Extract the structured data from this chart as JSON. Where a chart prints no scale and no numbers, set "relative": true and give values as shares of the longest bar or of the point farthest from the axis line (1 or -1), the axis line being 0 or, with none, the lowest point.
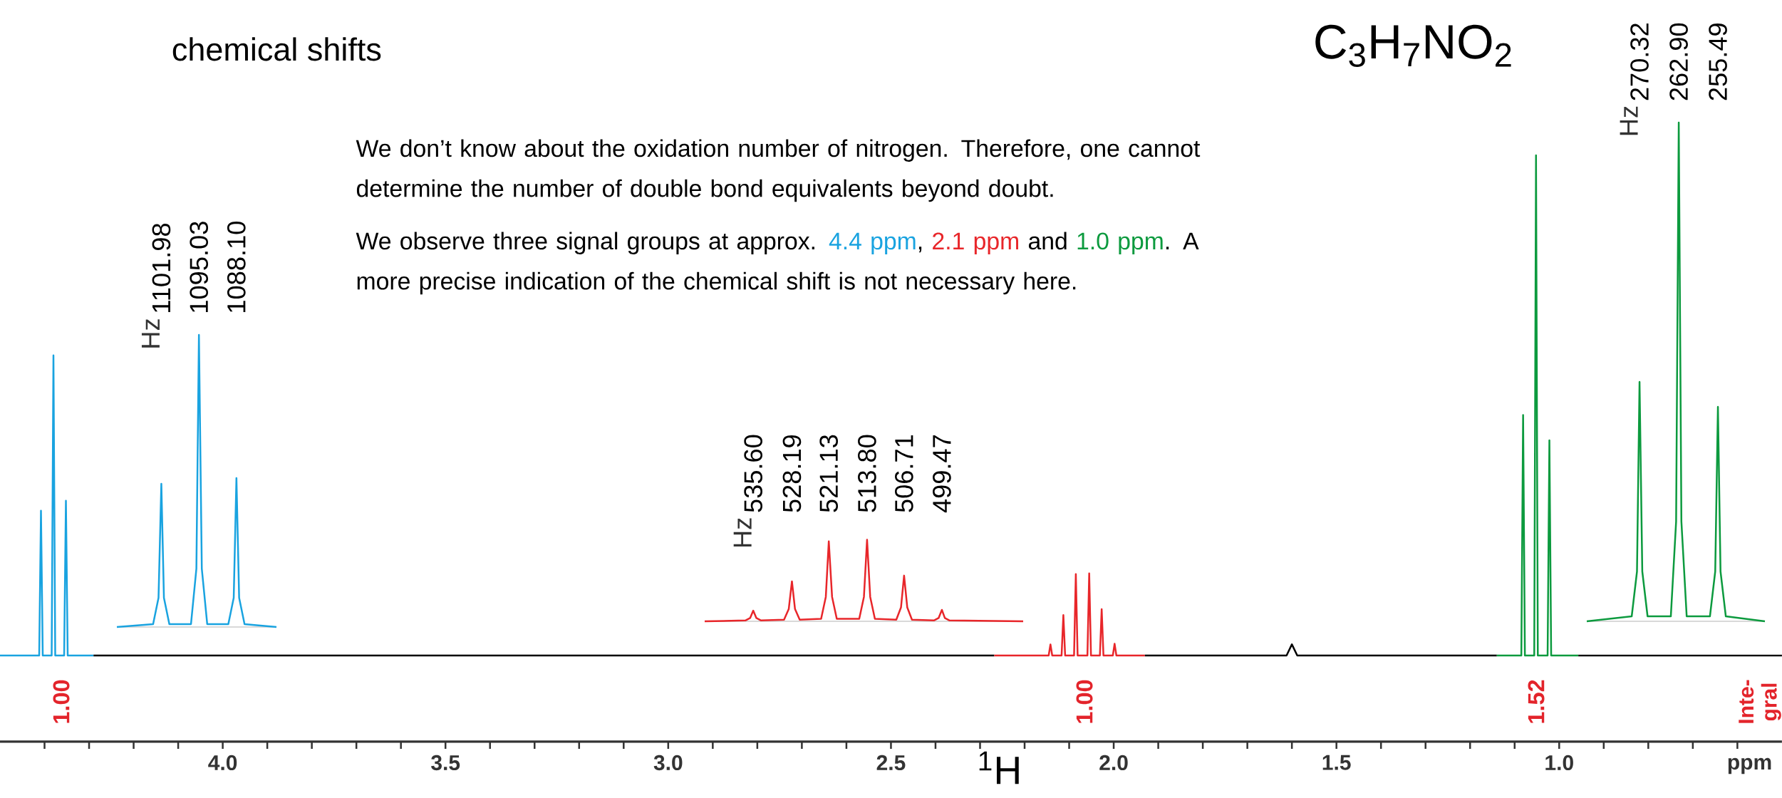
{
  "chart_data": [
    {
      "type": "line",
      "relative": true,
      "title": "chemical shifts",
      "xlabel": "$^{1}$H",
      "xlim": [
        4.5,
        0.5
      ],
      "xticks": [
        {
          "value": 4,
          "label": "4.0"
        },
        {
          "value": 3.5,
          "label": "3.5"
        },
        {
          "value": 3,
          "label": "3.0"
        },
        {
          "value": 2.5,
          "label": "2.5"
        },
        {
          "value": 2,
          "label": "2.0"
        },
        {
          "value": 1.5,
          "label": "1.5"
        },
        {
          "value": 1,
          "label": "1.0"
        },
        {
          "value": 4.4,
          "label": null
        },
        {
          "value": 4.3,
          "label": null
        },
        {
          "value": 4.2,
          "label": null
        },
        {
          "value": 4.1,
          "label": null
        },
        {
          "value": 3.9,
          "label": null
        },
        {
          "value": 3.8,
          "label": null
        },
        {
          "value": 3.7,
          "label": null
        },
        {
          "value": 3.6,
          "label": null
        },
        {
          "value": 3.4,
          "label": null
        },
        {
          "value": 3.3,
          "label": null
        },
        {
          "value": 3.2,
          "label": null
        },
        {
          "value": 3.1,
          "label": null
        },
        {
          "value": 2.9,
          "label": null
        },
        {
          "value": 2.8,
          "label": null
        },
        {
          "value": 2.7,
          "label": null
        },
        {
          "value": 2.6,
          "label": null
        },
        {
          "value": 2.4,
          "label": null
        },
        {
          "value": 2.3,
          "label": null
        },
        {
          "value": 2.2,
          "label": null
        },
        {
          "value": 2.1,
          "label": null
        },
        {
          "value": 1.9,
          "label": null
        },
        {
          "value": 1.8,
          "label": null
        },
        {
          "value": 1.7,
          "label": null
        },
        {
          "value": 1.6,
          "label": null
        },
        {
          "value": 1.4,
          "label": null
        },
        {
          "value": 1.3,
          "label": null
        },
        {
          "value": 1.2,
          "label": null
        },
        {
          "value": 1.1,
          "label": null
        },
        {
          "value": 0.9,
          "label": null
        },
        {
          "value": 0.8,
          "label": null
        },
        {
          "value": 0.7,
          "label": null
        },
        {
          "value": 0.6,
          "label": null
        }
      ],
      "series": [
        {
          "color": "#19a3e0",
          "x": [
            4.5,
            4.412,
            4.408,
            4.404,
            4.384,
            4.38,
            4.376,
            4.356,
            4.352,
            4.348,
            4.29
          ],
          "values": [
            0.147,
            0.147,
            0.394,
            0.147,
            0.147,
            0.659,
            0.147,
            0.147,
            0.411,
            0.147,
            0.147
          ]
        },
        {
          "color": "#000000",
          "x": [
            4.29,
            2.268
          ],
          "values": [
            0.147,
            0.147
          ]
        },
        {
          "color": "#e8262a",
          "x": [
            2.268,
            2.146,
            2.142,
            2.138,
            2.117,
            2.113,
            2.109,
            2.089,
            2.085,
            2.081,
            2.059,
            2.055,
            2.051,
            2.031,
            2.027,
            2.023,
            2.002,
            1.998,
            1.994,
            1.93
          ],
          "values": [
            0.147,
            0.147,
            0.166,
            0.147,
            0.147,
            0.216,
            0.147,
            0.147,
            0.286,
            0.147,
            0.147,
            0.287,
            0.147,
            0.147,
            0.226,
            0.147,
            0.147,
            0.167,
            0.147,
            0.147
          ]
        },
        {
          "color": "#000000",
          "x": [
            1.93,
            1.612,
            1.6,
            1.588,
            1.14
          ],
          "values": [
            0.147,
            0.147,
            0.166,
            0.147,
            0.147
          ]
        },
        {
          "color": "#0c9a3e",
          "x": [
            1.14,
            1.085,
            1.081,
            1.077,
            1.056,
            1.052,
            1.048,
            1.026,
            1.022,
            1.018,
            0.957
          ],
          "values": [
            0.147,
            0.147,
            0.557,
            0.147,
            0.147,
            1,
            0.147,
            0.147,
            0.514,
            0.147,
            0.147
          ]
        },
        {
          "color": "#000000",
          "x": [
            0.957,
            0.5
          ],
          "values": [
            0.147,
            0.147
          ]
        }
      ],
      "annotations": [
        "We don’t know about the oxidation number of nitrogen. Therefore, one cannot determine the number of double bond equivalents beyond doubt.",
        "We observe three signal groups at approx. ",
        "4.4 ppm",
        ", ",
        "2.1 ppm",
        " and ",
        "1.0 ppm",
        ". A more precise indication of the chemical shift is not necessary here.",
        "C$_{3}$H$_{7}$NO$_{2}$",
        "1.00",
        "1.00",
        "1.52",
        "Inte-gral",
        "ppm"
      ]
    },
    {
      "type": "line",
      "relative": true,
      "annotations": [
        "Hz"
      ],
      "xlim": [
        1110.2,
        1080.7
      ],
      "xticks": [
        {
          "value": 1101.98,
          "label": "1101.98"
        },
        {
          "value": 1095.03,
          "label": "1095.03"
        },
        {
          "value": 1088.1,
          "label": "1088.10"
        }
      ],
      "series": [
        {
          "color": "#19a3e0",
          "x": [
            1110.2,
            1103.5,
            1102.5,
            1101.98,
            1101.5,
            1100.5,
            1096.5,
            1095.5,
            1095.03,
            1094.5,
            1093.5,
            1089.6,
            1088.6,
            1088.1,
            1087.6,
            1086.6,
            1080.7
          ],
          "values": [
            0,
            0.01,
            0.1,
            0.49,
            0.1,
            0.01,
            0.01,
            0.2,
            1,
            0.2,
            0.01,
            0.01,
            0.1,
            0.51,
            0.1,
            0.01,
            0
          ]
        }
      ]
    },
    {
      "type": "line",
      "relative": true,
      "annotations": [
        "Hz"
      ],
      "xlim": [
        544.9,
        483.9
      ],
      "xticks": [
        {
          "value": 535.6,
          "label": "535.60"
        },
        {
          "value": 528.19,
          "label": "528.19"
        },
        {
          "value": 521.13,
          "label": "521.13"
        },
        {
          "value": 513.8,
          "label": "513.80"
        },
        {
          "value": 506.71,
          "label": "506.71"
        },
        {
          "value": 499.47,
          "label": "499.47"
        }
      ],
      "series": [
        {
          "color": "#e8262a",
          "x": [
            544.9,
            537.1,
            536.2,
            535.6,
            535.0,
            534.1,
            529.7,
            528.8,
            528.19,
            527.6,
            526.7,
            522.6,
            521.7,
            521.13,
            520.5,
            519.6,
            515.3,
            514.4,
            513.8,
            513.2,
            512.3,
            508.2,
            507.3,
            506.71,
            506.1,
            505.2,
            501.0,
            500.1,
            499.47,
            498.9,
            498.0,
            483.9
          ],
          "values": [
            0,
            0.01,
            0.04,
            0.13,
            0.04,
            0.01,
            0.02,
            0.15,
            0.49,
            0.15,
            0.02,
            0.03,
            0.3,
            0.98,
            0.3,
            0.03,
            0.03,
            0.3,
            1,
            0.3,
            0.03,
            0.02,
            0.17,
            0.56,
            0.17,
            0.02,
            0.01,
            0.04,
            0.14,
            0.04,
            0.01,
            0
          ]
        }
      ]
    },
    {
      "type": "line",
      "relative": true,
      "annotations": [
        "Hz"
      ],
      "xlim": [
        280.3,
        246.6
      ],
      "xticks": [
        {
          "value": 270.32,
          "label": "270.32"
        },
        {
          "value": 262.9,
          "label": "262.90"
        },
        {
          "value": 255.49,
          "label": "255.49"
        }
      ],
      "series": [
        {
          "color": "#0c9a3e",
          "x": [
            280.3,
            271.8,
            270.8,
            270.32,
            269.8,
            268.8,
            264.4,
            263.4,
            262.9,
            262.4,
            261.4,
            257.0,
            256.0,
            255.49,
            255.0,
            254.0,
            246.6
          ],
          "values": [
            0,
            0.01,
            0.1,
            0.48,
            0.1,
            0.01,
            0.01,
            0.2,
            1,
            0.2,
            0.01,
            0.01,
            0.1,
            0.43,
            0.1,
            0.01,
            0
          ]
        }
      ]
    }
  ]
}
